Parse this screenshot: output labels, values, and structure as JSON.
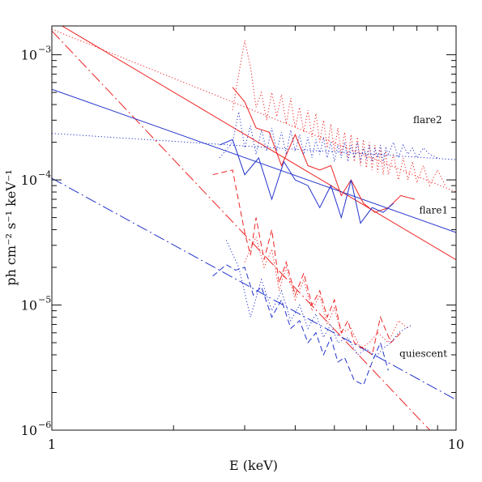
{
  "chart_data": {
    "type": "line",
    "xscale": "log",
    "yscale": "log",
    "xlim": [
      1,
      10
    ],
    "ylim": [
      1e-06,
      0.0017
    ],
    "xlabel": "E (keV)",
    "ylabel": "ph cm⁻² s⁻¹ keV⁻¹",
    "xticks": [
      {
        "value": 1,
        "label": "1"
      },
      {
        "value": 10,
        "label": "10"
      }
    ],
    "yticks": [
      {
        "value": 1e-06,
        "base": "10",
        "exp": "−6"
      },
      {
        "value": 1e-05,
        "base": "10",
        "exp": "−5"
      },
      {
        "value": 0.0001,
        "base": "10",
        "exp": "−4"
      },
      {
        "value": 0.001,
        "base": "10",
        "exp": "−3"
      }
    ],
    "annotations": [
      {
        "text": "flare2",
        "x": 8.5,
        "y": 0.000285
      },
      {
        "text": "flare1",
        "x": 8.8,
        "y": 5.4e-05
      },
      {
        "text": "quiescent",
        "x": 8.3,
        "y": 3.85e-06
      }
    ],
    "colors": {
      "red": "#ee2222",
      "blue": "#2233cc",
      "frame": "#111111"
    },
    "series": [
      {
        "color": "red",
        "dash": "solid",
        "kind": "model",
        "x": [
          1,
          10
        ],
        "y": [
          0.0019,
          2.3e-05
        ]
      },
      {
        "color": "red",
        "dash": "dot",
        "kind": "model",
        "x": [
          1,
          10
        ],
        "y": [
          0.0016,
          8e-05
        ]
      },
      {
        "color": "red",
        "dash": "dashdot",
        "kind": "model",
        "x": [
          1,
          10
        ],
        "y": [
          0.00155,
          6e-07
        ]
      },
      {
        "color": "blue",
        "dash": "solid",
        "kind": "model",
        "x": [
          1,
          10
        ],
        "y": [
          0.00053,
          3.8e-05
        ]
      },
      {
        "color": "blue",
        "dash": "dot",
        "kind": "model",
        "x": [
          1,
          10
        ],
        "y": [
          0.000235,
          0.000145
        ]
      },
      {
        "color": "blue",
        "dash": "dashdot",
        "kind": "model",
        "x": [
          1,
          10
        ],
        "y": [
          0.000103,
          1.75e-06
        ]
      },
      {
        "color": "red",
        "dash": "solid",
        "kind": "data",
        "x": [
          2.8,
          3.0,
          3.2,
          3.45,
          3.7,
          4.0,
          4.3,
          4.6,
          4.9,
          5.2,
          5.5,
          5.9,
          6.3,
          6.8,
          7.3,
          7.9
        ],
        "y": [
          0.00055,
          0.00042,
          0.00026,
          0.00024,
          0.00013,
          0.00023,
          0.00013,
          0.00012,
          0.00013,
          7.5e-05,
          0.0001,
          6.5e-05,
          5.5e-05,
          6e-05,
          7.5e-05,
          7e-05
        ]
      },
      {
        "color": "red",
        "dash": "dot",
        "kind": "data",
        "x": [
          2.8,
          2.9,
          3.0,
          3.1,
          3.2,
          3.3,
          3.4,
          3.5,
          3.6,
          3.7,
          3.8,
          3.9,
          4.0,
          4.1,
          4.2,
          4.3,
          4.4,
          4.5,
          4.6,
          4.7,
          4.8,
          4.9,
          5.0,
          5.1,
          5.2,
          5.3,
          5.4,
          5.5,
          5.6,
          5.7,
          5.8,
          5.9,
          6.0,
          6.1,
          6.2,
          6.3,
          6.4,
          6.5,
          6.6,
          6.7,
          6.8,
          7.0,
          7.2,
          7.4,
          7.6,
          7.8,
          8.0,
          8.3,
          8.6,
          9.0,
          9.4
        ],
        "y": [
          0.00036,
          0.0007,
          0.0013,
          0.0008,
          0.00038,
          0.0005,
          0.0003,
          0.0005,
          0.00032,
          0.00048,
          0.00028,
          0.00045,
          0.00026,
          0.00038,
          0.00024,
          0.00036,
          0.00022,
          0.00034,
          0.0002,
          0.0003,
          0.00018,
          0.00028,
          0.00017,
          0.00026,
          0.00016,
          0.00024,
          0.00015,
          0.00023,
          0.00014,
          0.00022,
          0.00013,
          0.00021,
          0.000125,
          0.0002,
          0.00012,
          0.00019,
          0.000115,
          0.00018,
          0.00011,
          0.00017,
          0.00011,
          0.00016,
          0.0001,
          0.00015,
          0.0001,
          0.00014,
          9.5e-05,
          0.00013,
          9e-05,
          0.00012,
          9e-05
        ]
      },
      {
        "color": "red",
        "dash": "dashed",
        "kind": "data",
        "x": [
          2.5,
          2.8,
          3.0,
          3.1,
          3.2,
          3.35,
          3.5,
          3.65,
          3.8,
          4.0,
          4.2,
          4.4,
          4.6,
          4.8,
          5.0,
          5.2,
          5.4,
          5.6,
          5.9,
          6.2,
          6.5,
          6.9,
          7.3
        ],
        "y": [
          0.00011,
          0.00012,
          3.8e-05,
          2.5e-05,
          5e-05,
          2.3e-05,
          4e-05,
          1.5e-05,
          2.2e-05,
          1.2e-05,
          1.8e-05,
          1e-05,
          1.3e-05,
          8e-06,
          1.1e-05,
          6e-06,
          7.5e-06,
          5e-06,
          4.5e-06,
          4e-06,
          8e-06,
          5e-06,
          6e-06
        ]
      },
      {
        "color": "red",
        "dash": "dot",
        "kind": "data",
        "x": [
          3.0,
          3.2,
          3.35,
          3.5,
          3.65,
          3.8,
          4.0,
          4.2,
          4.4,
          4.6,
          4.8,
          5.0,
          5.2,
          5.5,
          5.8,
          6.1,
          6.4,
          6.8,
          7.2,
          7.6
        ],
        "y": [
          2.2e-05,
          3.5e-05,
          2e-05,
          2.8e-05,
          1.3e-05,
          2e-05,
          1.1e-05,
          1.6e-05,
          9e-06,
          1.2e-05,
          7e-06,
          9.5e-06,
          6e-06,
          6.5e-06,
          4.5e-06,
          5e-06,
          6e-06,
          5e-06,
          7.5e-06,
          6.5e-06
        ]
      },
      {
        "color": "blue",
        "dash": "solid",
        "kind": "data",
        "x": [
          2.6,
          2.8,
          3.0,
          3.25,
          3.5,
          3.75,
          4.0,
          4.3,
          4.6,
          4.9,
          5.2,
          5.5,
          5.8,
          6.2,
          6.6,
          7.0
        ],
        "y": [
          0.00019,
          0.00021,
          0.00011,
          0.00015,
          7e-05,
          0.00014,
          0.0001,
          9e-05,
          6e-05,
          9e-05,
          5e-05,
          0.0001,
          4.5e-05,
          6e-05,
          5.5e-05,
          6.5e-05
        ]
      },
      {
        "color": "blue",
        "dash": "dot",
        "kind": "data",
        "x": [
          2.6,
          2.8,
          2.9,
          3.0,
          3.1,
          3.2,
          3.3,
          3.4,
          3.5,
          3.6,
          3.7,
          3.8,
          3.9,
          4.0,
          4.1,
          4.2,
          4.3,
          4.4,
          4.5,
          4.6,
          4.7,
          4.8,
          4.9,
          5.0,
          5.1,
          5.2,
          5.3,
          5.4,
          5.5,
          5.6,
          5.7,
          5.8,
          5.9,
          6.0,
          6.1,
          6.2,
          6.3,
          6.4,
          6.5,
          6.6,
          6.7,
          6.8,
          7.0,
          7.2,
          7.4,
          7.6,
          7.8,
          8.0,
          8.3,
          8.6,
          9.0
        ],
        "y": [
          0.00015,
          0.0002,
          0.00035,
          0.00018,
          0.00027,
          0.00016,
          0.00025,
          0.00017,
          0.00026,
          0.00017,
          0.00024,
          0.00016,
          0.00025,
          0.00017,
          0.00023,
          0.00016,
          0.00022,
          0.00015,
          0.00021,
          0.00016,
          0.00022,
          0.00015,
          0.0002,
          0.00014,
          0.00019,
          0.00015,
          0.0002,
          0.00014,
          0.00019,
          0.00015,
          0.0002,
          0.00014,
          0.00018,
          0.00015,
          0.00019,
          0.00014,
          0.00018,
          0.00015,
          0.00019,
          0.00014,
          0.00018,
          0.00016,
          0.0002,
          0.00015,
          0.00019,
          0.00016,
          0.00018,
          0.00015,
          0.00018,
          0.00016,
          0.00015
        ]
      },
      {
        "color": "blue",
        "dash": "dashed",
        "kind": "data",
        "x": [
          2.5,
          2.7,
          2.85,
          3.0,
          3.15,
          3.3,
          3.5,
          3.7,
          3.9,
          4.1,
          4.3,
          4.5,
          4.7,
          4.9,
          5.1,
          5.3,
          5.6,
          5.9,
          6.2,
          6.5,
          6.8
        ],
        "y": [
          1.7e-05,
          2.1e-05,
          1.9e-05,
          2e-05,
          1.2e-05,
          1.4e-05,
          8e-06,
          1.1e-05,
          6.5e-06,
          7.5e-06,
          5e-06,
          6e-06,
          4e-06,
          5.5e-06,
          3.5e-06,
          3.8e-06,
          2.5e-06,
          2.3e-06,
          3.5e-06,
          5e-06,
          3e-06
        ]
      },
      {
        "color": "blue",
        "dash": "dot",
        "kind": "data",
        "x": [
          2.7,
          2.9,
          3.1,
          3.3,
          3.5,
          3.7,
          3.9,
          4.1,
          4.3,
          4.5,
          4.7,
          4.9,
          5.1,
          5.4,
          5.7,
          6.0,
          6.3,
          6.6,
          6.9,
          7.2,
          7.5,
          7.8
        ],
        "y": [
          3.3e-05,
          2e-05,
          8e-06,
          1.6e-05,
          9e-06,
          1.3e-05,
          7.5e-06,
          1e-05,
          6.5e-06,
          8.5e-06,
          5.5e-06,
          7e-06,
          5e-06,
          5.5e-06,
          4e-06,
          4.5e-06,
          3.8e-06,
          4.5e-06,
          5e-06,
          6e-06,
          6.5e-06,
          7e-06
        ]
      }
    ]
  }
}
